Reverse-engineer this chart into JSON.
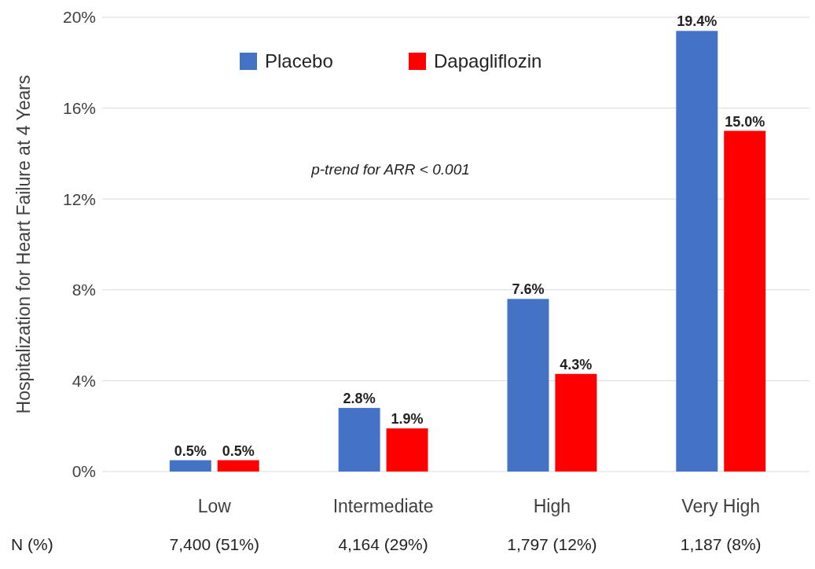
{
  "chart_data": {
    "type": "bar",
    "ylabel": "Hospitalization for Heart Failure at 4 Years",
    "categories": [
      "Low",
      "Intermediate",
      "High",
      "Very High"
    ],
    "series": [
      {
        "name": "Placebo",
        "color": "#4472c4",
        "values": [
          0.5,
          2.8,
          7.6,
          19.4
        ]
      },
      {
        "name": "Dapagliflozin",
        "color": "#ff0000",
        "values": [
          0.5,
          1.9,
          4.3,
          15.0
        ]
      }
    ],
    "value_labels": [
      [
        "0.5%",
        "2.8%",
        "7.6%",
        "19.4%"
      ],
      [
        "0.5%",
        "1.9%",
        "4.3%",
        "15.0%"
      ]
    ],
    "ylim": [
      0,
      20
    ],
    "yticks": [
      {
        "value": 0,
        "label": "0%"
      },
      {
        "value": 4,
        "label": "4%"
      },
      {
        "value": 8,
        "label": "8%"
      },
      {
        "value": 12,
        "label": "12%"
      },
      {
        "value": 16,
        "label": "16%"
      },
      {
        "value": 20,
        "label": "20%"
      }
    ],
    "grid": "y",
    "legend": "top",
    "annotations": [
      "p-trend for ARR < 0.001",
      "N (%)",
      "7,400 (51%)",
      "4,164 (29%)",
      "1,797 (12%)",
      "1,187 (8%)"
    ]
  }
}
